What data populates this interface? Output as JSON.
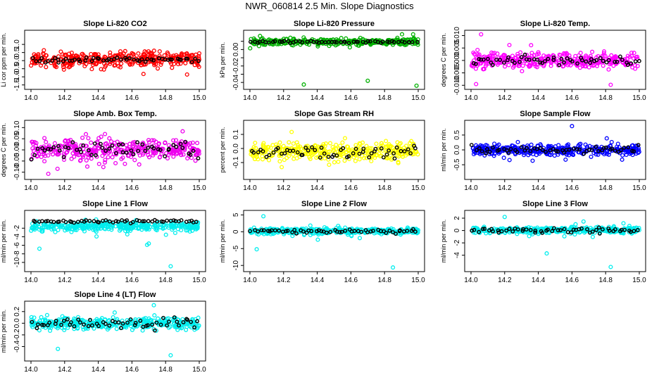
{
  "figure": {
    "title": "NWR_060814  2.5 Min. Slope Diagnostics"
  },
  "colors": {
    "highlight": "#000000"
  },
  "chart_data": [
    {
      "id": "co2",
      "type": "scatter",
      "title": "Slope Li-820 CO2",
      "ylabel": "Li cor ppm per min.",
      "color": "#ff0000",
      "xlim": [
        14.0,
        15.0
      ],
      "ylim": [
        -1.6,
        1.7
      ],
      "xticks": [
        "14.0",
        "14.2",
        "14.4",
        "14.6",
        "14.8",
        "15.0"
      ],
      "yticks": [
        -1.5,
        -1.0,
        -0.5,
        0.0,
        0.5,
        1.0
      ],
      "ytick_labels": [
        "-1.5",
        "-1.0",
        "-0.5",
        "0.0",
        "0.5",
        "1.0"
      ],
      "center": 0.05,
      "spread": 0.55,
      "hl_spread": 0.2,
      "seed": 11
    },
    {
      "id": "pressure",
      "type": "scatter",
      "title": "Slope Li-820 Pressure",
      "ylabel": "kPa per min.",
      "color": "#00b000",
      "xlim": [
        14.0,
        15.0
      ],
      "ylim": [
        -0.045,
        0.02
      ],
      "xticks": [
        "14.0",
        "14.2",
        "14.4",
        "14.6",
        "14.8",
        "15.0"
      ],
      "yticks": [
        -0.04,
        -0.03,
        -0.02,
        -0.01,
        0.0,
        0.01
      ],
      "ytick_labels": [
        "-0.04",
        "",
        "-0.02",
        "",
        "0.00",
        ""
      ],
      "center": 0.0093,
      "spread": 0.0045,
      "hl_spread": 0.0015,
      "seed": 23,
      "outliers": [
        [
          14.32,
          -0.0425
        ],
        [
          14.7,
          -0.038
        ],
        [
          14.99,
          -0.044
        ],
        [
          14.06,
          0.0165
        ],
        [
          14.97,
          0.0185
        ]
      ]
    },
    {
      "id": "temp",
      "type": "scatter",
      "title": "Slope Li-820 Temp.",
      "ylabel": "degrees C per min.",
      "color": "#ff00ff",
      "xlim": [
        14.0,
        15.0
      ],
      "ylim": [
        -0.0105,
        0.011
      ],
      "xticks": [
        "14.0",
        "14.2",
        "14.4",
        "14.6",
        "14.8",
        "15.0"
      ],
      "yticks": [
        -0.01,
        -0.005,
        0.0,
        0.005,
        0.01
      ],
      "ytick_labels": [
        "-0.010",
        "-0.005",
        "0.000",
        "0.005",
        "0.010"
      ],
      "center": 0.0,
      "spread": 0.0035,
      "hl_spread": 0.002,
      "seed": 37,
      "outliers": [
        [
          14.06,
          0.0105
        ],
        [
          14.03,
          -0.0095
        ],
        [
          14.83,
          -0.0098
        ]
      ]
    },
    {
      "id": "ambbox",
      "type": "scatter",
      "title": "Slope Amb. Box Temp.",
      "ylabel": "degrees C per min.",
      "color": "#ee00ee",
      "xlim": [
        14.0,
        15.0
      ],
      "ylim": [
        -0.12,
        0.12
      ],
      "xticks": [
        "14.0",
        "14.2",
        "14.4",
        "14.6",
        "14.8",
        "15.0"
      ],
      "yticks": [
        -0.1,
        -0.05,
        0.0,
        0.05,
        0.1
      ],
      "ytick_labels": [
        "-0.10",
        "-0.05",
        "0.00",
        "0.05",
        "0.10"
      ],
      "center": 0.0,
      "spread": 0.05,
      "hl_spread": 0.04,
      "seed": 41
    },
    {
      "id": "rh",
      "type": "scatter",
      "title": "Slope Gas Stream RH",
      "ylabel": "percent per min.",
      "color": "#ffff00",
      "xlim": [
        14.0,
        15.0
      ],
      "ylim": [
        -0.2,
        0.18
      ],
      "xticks": [
        "14.0",
        "14.2",
        "14.4",
        "14.6",
        "14.8",
        "15.0"
      ],
      "yticks": [
        -0.1,
        0.0,
        0.1
      ],
      "ytick_labels": [
        "-0.1",
        "0.0",
        "0.1"
      ],
      "center": -0.02,
      "spread": 0.07,
      "hl_spread": 0.05,
      "seed": 53
    },
    {
      "id": "sampleflow",
      "type": "scatter",
      "title": "Slope Sample Flow",
      "ylabel": "ml/min per min.",
      "color": "#0000ff",
      "xlim": [
        14.0,
        15.0
      ],
      "ylim": [
        -0.9,
        0.9
      ],
      "xticks": [
        "14.0",
        "14.2",
        "14.4",
        "14.6",
        "14.8",
        "15.0"
      ],
      "yticks": [
        -0.5,
        0.0,
        0.5
      ],
      "ytick_labels": [
        "-0.5",
        "0.0",
        "0.5"
      ],
      "center": 0.0,
      "spread": 0.2,
      "hl_spread": 0.15,
      "seed": 67,
      "outliers": [
        [
          14.6,
          0.8
        ]
      ]
    },
    {
      "id": "line1",
      "type": "scatter",
      "title": "Slope Line 1 Flow",
      "ylabel": "ml/min per min.",
      "color": "#00eeee",
      "xlim": [
        14.0,
        15.0
      ],
      "ylim": [
        -11.5,
        1.5
      ],
      "xticks": [
        "14.0",
        "14.2",
        "14.4",
        "14.6",
        "14.8",
        "15.0"
      ],
      "yticks": [
        -10,
        -8,
        -6,
        -4,
        -2
      ],
      "ytick_labels": [
        "-10",
        "-8",
        "-6",
        "-4",
        "-2"
      ],
      "center": -1.6,
      "spread": 1.2,
      "hl_spread": 0.4,
      "seed": 71,
      "hl_center": -0.4,
      "outliers": [
        [
          14.83,
          -10.9
        ],
        [
          14.05,
          -6.8
        ],
        [
          14.7,
          -5.6
        ],
        [
          14.69,
          -5.9
        ]
      ]
    },
    {
      "id": "line2",
      "type": "scatter",
      "title": "Slope Line 2 Flow",
      "ylabel": "ml/min per min.",
      "color": "#00eeee",
      "xlim": [
        14.0,
        15.0
      ],
      "ylim": [
        -11,
        5.5
      ],
      "xticks": [
        "14.0",
        "14.2",
        "14.4",
        "14.6",
        "14.8",
        "15.0"
      ],
      "yticks": [
        -10,
        -5,
        0,
        5
      ],
      "ytick_labels": [
        "-10",
        "-5",
        "0",
        "5"
      ],
      "center": 0.2,
      "spread": 1.0,
      "hl_spread": 0.7,
      "seed": 83,
      "outliers": [
        [
          14.85,
          -10.6
        ],
        [
          14.04,
          -5.2
        ],
        [
          14.08,
          4.6
        ]
      ]
    },
    {
      "id": "line3",
      "type": "scatter",
      "title": "Slope Line 3 Flow",
      "ylabel": "ml/min per min.",
      "color": "#00eeee",
      "xlim": [
        14.0,
        15.0
      ],
      "ylim": [
        -6.2,
        2.8
      ],
      "xticks": [
        "14.0",
        "14.2",
        "14.4",
        "14.6",
        "14.8",
        "15.0"
      ],
      "yticks": [
        -4,
        -2,
        0,
        2
      ],
      "ytick_labels": [
        "-4",
        "-2",
        "0",
        "2"
      ],
      "center": 0.05,
      "spread": 0.6,
      "hl_spread": 0.5,
      "seed": 97,
      "outliers": [
        [
          14.83,
          -5.9
        ],
        [
          14.45,
          -3.7
        ],
        [
          14.2,
          2.2
        ]
      ]
    },
    {
      "id": "line4",
      "type": "scatter",
      "title": "Slope Line 4 (LT) Flow",
      "ylabel": "ml/min per min.",
      "color": "#00eeee",
      "xlim": [
        14.0,
        15.0
      ],
      "ylim": [
        -0.6,
        0.33
      ],
      "xticks": [
        "14.0",
        "14.2",
        "14.4",
        "14.6",
        "14.8",
        "15.0"
      ],
      "yticks": [
        -0.4,
        -0.2,
        0.0,
        0.2
      ],
      "ytick_labels": [
        "-0.4",
        "-0.2",
        "0.0",
        "0.2"
      ],
      "center": 0.0,
      "spread": 0.11,
      "hl_spread": 0.1,
      "seed": 101,
      "outliers": [
        [
          14.83,
          -0.55
        ],
        [
          14.16,
          -0.44
        ],
        [
          14.73,
          0.31
        ]
      ]
    }
  ]
}
